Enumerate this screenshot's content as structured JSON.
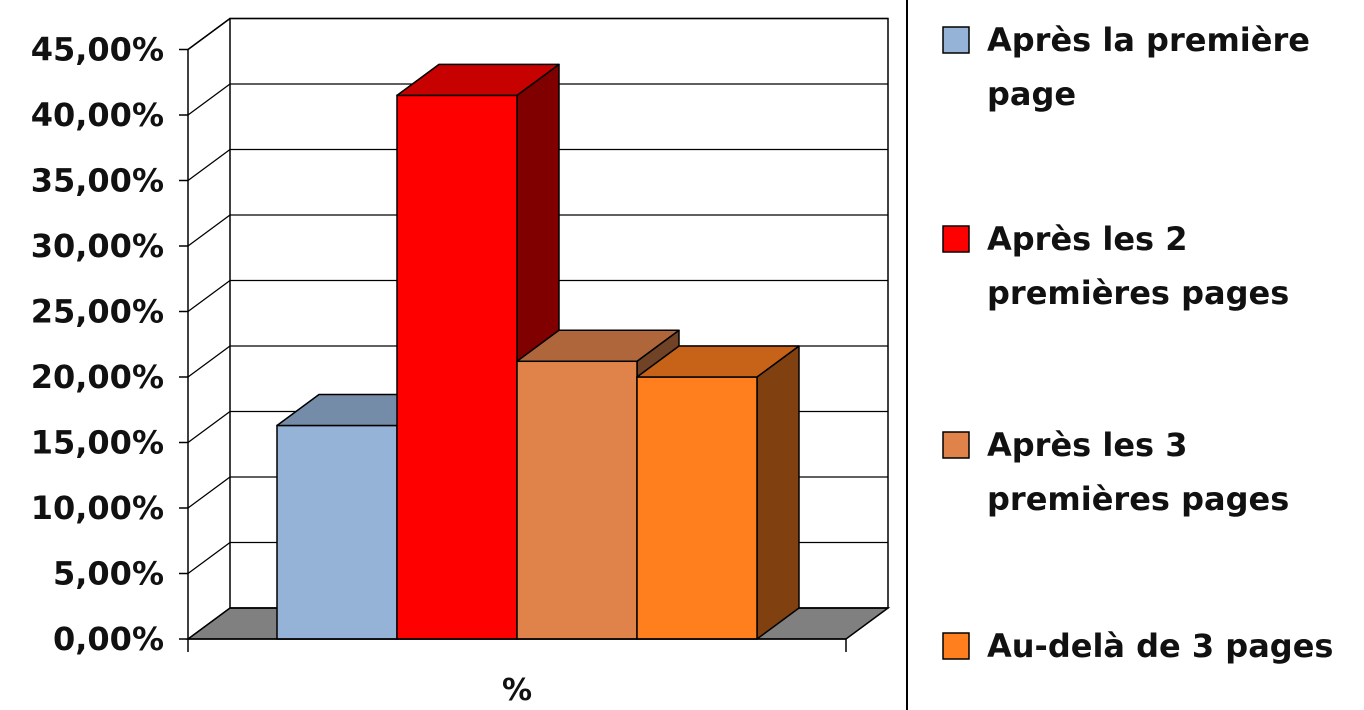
{
  "chart_data": {
    "type": "bar",
    "style": "3d",
    "categories": [
      "%"
    ],
    "xlabel": "%",
    "ylabel": "",
    "ylim": [
      0,
      0.45
    ],
    "yticks": [
      "0,00%",
      "5,00%",
      "10,00%",
      "15,00%",
      "20,00%",
      "25,00%",
      "30,00%",
      "35,00%",
      "40,00%",
      "45,00%"
    ],
    "grid": true,
    "legend_position": "right",
    "series": [
      {
        "name": "Après la première page",
        "legend_lines": [
          "Après la première",
          "page"
        ],
        "values": [
          0.163
        ],
        "color": "#95b3d7"
      },
      {
        "name": "Après les 2 premières pages",
        "legend_lines": [
          "Après les 2",
          "premières pages"
        ],
        "values": [
          0.415
        ],
        "color": "#ff0000"
      },
      {
        "name": "Après les 3 premières pages",
        "legend_lines": [
          "Après les 3",
          "premières pages"
        ],
        "values": [
          0.212
        ],
        "color": "#e0834b"
      },
      {
        "name": "Au-delà de 3 pages",
        "legend_lines": [
          "Au-delà de 3 pages"
        ],
        "values": [
          0.2
        ],
        "color": "#ff7f1f"
      }
    ]
  }
}
